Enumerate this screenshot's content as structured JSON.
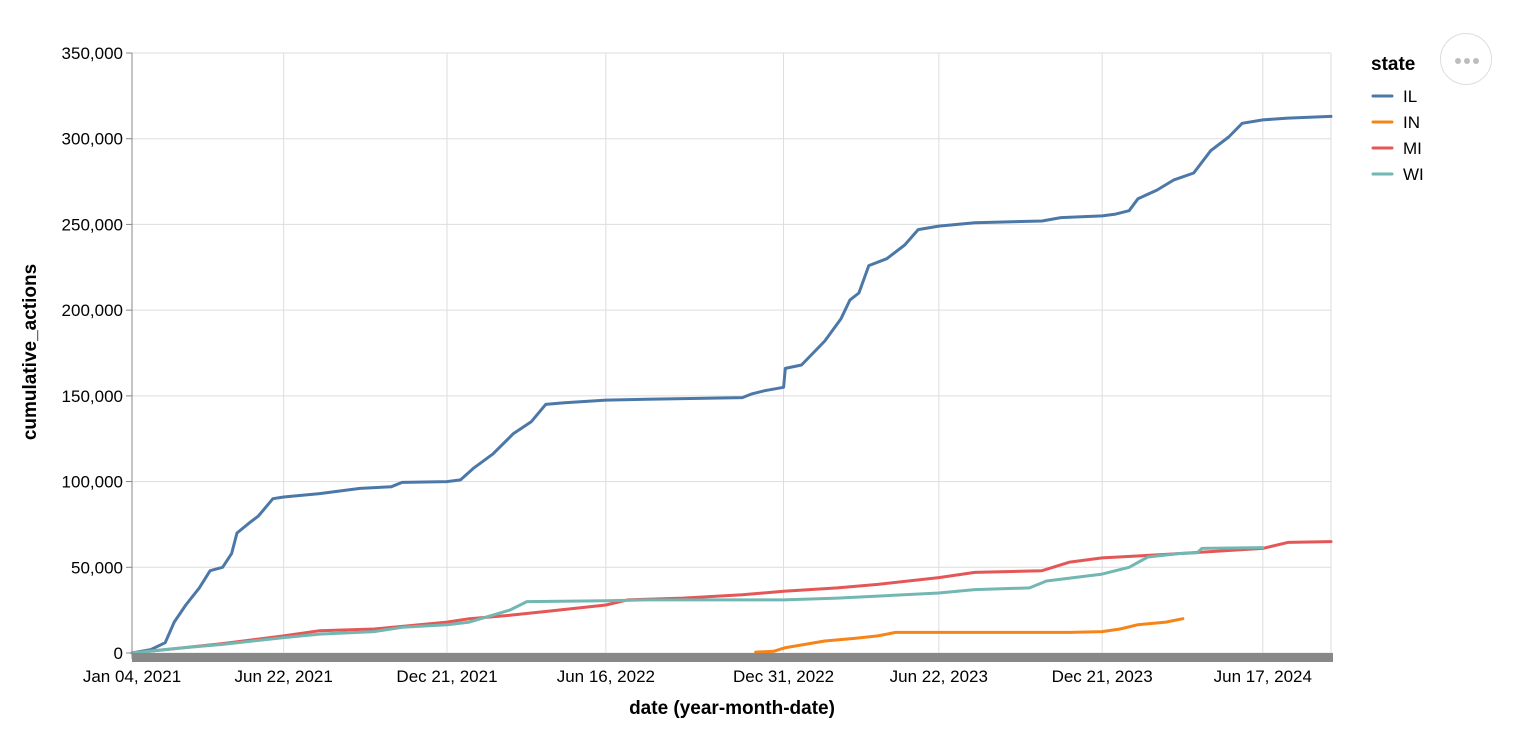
{
  "chart_data": {
    "type": "line",
    "xlabel": "date (year-month-date)",
    "ylabel": "cumulative_actions",
    "x_ticks": [
      "Jan 04, 2021",
      "Jun 22, 2021",
      "Dec 21, 2021",
      "Jun 16, 2022",
      "Dec 31, 2022",
      "Jun 22, 2023",
      "Dec 21, 2023",
      "Jun 17, 2024"
    ],
    "y_ticks": [
      "0",
      "50,000",
      "100,000",
      "150,000",
      "200,000",
      "250,000",
      "300,000",
      "350,000"
    ],
    "xlim": [
      "2021-01-04",
      "2024-09-01"
    ],
    "ylim": [
      0,
      350000
    ],
    "grid": true,
    "legend": {
      "title": "state",
      "position": "top-right"
    },
    "series": [
      {
        "name": "IL",
        "color": "#4c78a8",
        "points": [
          [
            "2021-01-04",
            0
          ],
          [
            "2021-01-25",
            2000
          ],
          [
            "2021-02-10",
            6000
          ],
          [
            "2021-02-20",
            18000
          ],
          [
            "2021-03-05",
            28000
          ],
          [
            "2021-03-20",
            38000
          ],
          [
            "2021-04-01",
            48000
          ],
          [
            "2021-04-15",
            50000
          ],
          [
            "2021-04-25",
            58000
          ],
          [
            "2021-05-01",
            70000
          ],
          [
            "2021-05-15",
            76000
          ],
          [
            "2021-05-25",
            80000
          ],
          [
            "2021-06-10",
            90000
          ],
          [
            "2021-06-22",
            91000
          ],
          [
            "2021-08-01",
            93000
          ],
          [
            "2021-09-15",
            96000
          ],
          [
            "2021-10-20",
            97000
          ],
          [
            "2021-11-01",
            99500
          ],
          [
            "2021-12-21",
            100000
          ],
          [
            "2022-01-05",
            101000
          ],
          [
            "2022-01-20",
            108000
          ],
          [
            "2022-02-10",
            116000
          ],
          [
            "2022-03-05",
            128000
          ],
          [
            "2022-03-25",
            135000
          ],
          [
            "2022-04-10",
            145000
          ],
          [
            "2022-05-01",
            146000
          ],
          [
            "2022-06-16",
            147500
          ],
          [
            "2022-08-01",
            148000
          ],
          [
            "2022-11-15",
            149000
          ],
          [
            "2022-11-25",
            151000
          ],
          [
            "2022-12-10",
            153000
          ],
          [
            "2022-12-31",
            155000
          ],
          [
            "2023-01-02",
            166000
          ],
          [
            "2023-01-20",
            168000
          ],
          [
            "2023-02-15",
            182000
          ],
          [
            "2023-03-05",
            195000
          ],
          [
            "2023-03-15",
            206000
          ],
          [
            "2023-03-25",
            210000
          ],
          [
            "2023-04-05",
            226000
          ],
          [
            "2023-04-25",
            230000
          ],
          [
            "2023-05-15",
            238000
          ],
          [
            "2023-05-30",
            247000
          ],
          [
            "2023-06-22",
            249000
          ],
          [
            "2023-08-01",
            251000
          ],
          [
            "2023-10-15",
            252000
          ],
          [
            "2023-11-05",
            254000
          ],
          [
            "2023-12-21",
            255000
          ],
          [
            "2024-01-05",
            256000
          ],
          [
            "2024-01-20",
            258000
          ],
          [
            "2024-01-30",
            265000
          ],
          [
            "2024-02-20",
            270000
          ],
          [
            "2024-03-10",
            276000
          ],
          [
            "2024-04-01",
            280000
          ],
          [
            "2024-04-20",
            293000
          ],
          [
            "2024-05-10",
            301000
          ],
          [
            "2024-05-25",
            309000
          ],
          [
            "2024-06-17",
            311000
          ],
          [
            "2024-07-15",
            312000
          ],
          [
            "2024-09-01",
            313000
          ]
        ]
      },
      {
        "name": "IN",
        "color": "#f58518",
        "points": [
          [
            "2022-11-30",
            500
          ],
          [
            "2022-12-20",
            1000
          ],
          [
            "2023-01-01",
            3000
          ],
          [
            "2023-02-15",
            7000
          ],
          [
            "2023-03-20",
            8500
          ],
          [
            "2023-04-15",
            10000
          ],
          [
            "2023-05-05",
            12000
          ],
          [
            "2023-06-22",
            12000
          ],
          [
            "2023-10-01",
            12000
          ],
          [
            "2023-11-15",
            12000
          ],
          [
            "2023-12-21",
            12500
          ],
          [
            "2024-01-10",
            14000
          ],
          [
            "2024-01-30",
            16500
          ],
          [
            "2024-03-01",
            18000
          ],
          [
            "2024-03-20",
            20000
          ]
        ]
      },
      {
        "name": "MI",
        "color": "#e45756",
        "points": [
          [
            "2021-01-04",
            0
          ],
          [
            "2021-03-01",
            3000
          ],
          [
            "2021-04-15",
            5500
          ],
          [
            "2021-06-22",
            10000
          ],
          [
            "2021-08-01",
            13000
          ],
          [
            "2021-10-01",
            14000
          ],
          [
            "2021-12-21",
            18000
          ],
          [
            "2022-01-15",
            20000
          ],
          [
            "2022-03-01",
            22000
          ],
          [
            "2022-04-15",
            24500
          ],
          [
            "2022-06-16",
            28000
          ],
          [
            "2022-07-10",
            31000
          ],
          [
            "2022-09-10",
            32000
          ],
          [
            "2022-11-15",
            34000
          ],
          [
            "2022-12-31",
            36000
          ],
          [
            "2023-03-01",
            38000
          ],
          [
            "2023-04-15",
            40000
          ],
          [
            "2023-06-22",
            44000
          ],
          [
            "2023-08-01",
            47000
          ],
          [
            "2023-10-15",
            48000
          ],
          [
            "2023-11-15",
            53000
          ],
          [
            "2023-12-21",
            55500
          ],
          [
            "2024-03-01",
            57500
          ],
          [
            "2024-06-17",
            61000
          ],
          [
            "2024-07-15",
            64500
          ],
          [
            "2024-09-01",
            65000
          ]
        ]
      },
      {
        "name": "WI",
        "color": "#72b7b2",
        "points": [
          [
            "2021-01-04",
            0
          ],
          [
            "2021-03-01",
            3000
          ],
          [
            "2021-04-15",
            5000
          ],
          [
            "2021-06-22",
            9000
          ],
          [
            "2021-08-01",
            11000
          ],
          [
            "2021-10-01",
            12500
          ],
          [
            "2021-11-01",
            15000
          ],
          [
            "2021-12-21",
            16500
          ],
          [
            "2022-01-15",
            18000
          ],
          [
            "2022-03-01",
            25000
          ],
          [
            "2022-03-20",
            30000
          ],
          [
            "2022-06-16",
            30500
          ],
          [
            "2022-08-01",
            31000
          ],
          [
            "2022-12-31",
            31000
          ],
          [
            "2023-03-01",
            32000
          ],
          [
            "2023-06-22",
            35000
          ],
          [
            "2023-08-01",
            37000
          ],
          [
            "2023-10-01",
            38000
          ],
          [
            "2023-10-20",
            42000
          ],
          [
            "2023-12-21",
            46000
          ],
          [
            "2024-01-20",
            50000
          ],
          [
            "2024-02-10",
            56000
          ],
          [
            "2024-03-15",
            58000
          ],
          [
            "2024-04-05",
            58500
          ],
          [
            "2024-04-10",
            61000
          ],
          [
            "2024-06-17",
            61500
          ]
        ]
      }
    ]
  },
  "legend_entries": [
    "IL",
    "IN",
    "MI",
    "WI"
  ]
}
